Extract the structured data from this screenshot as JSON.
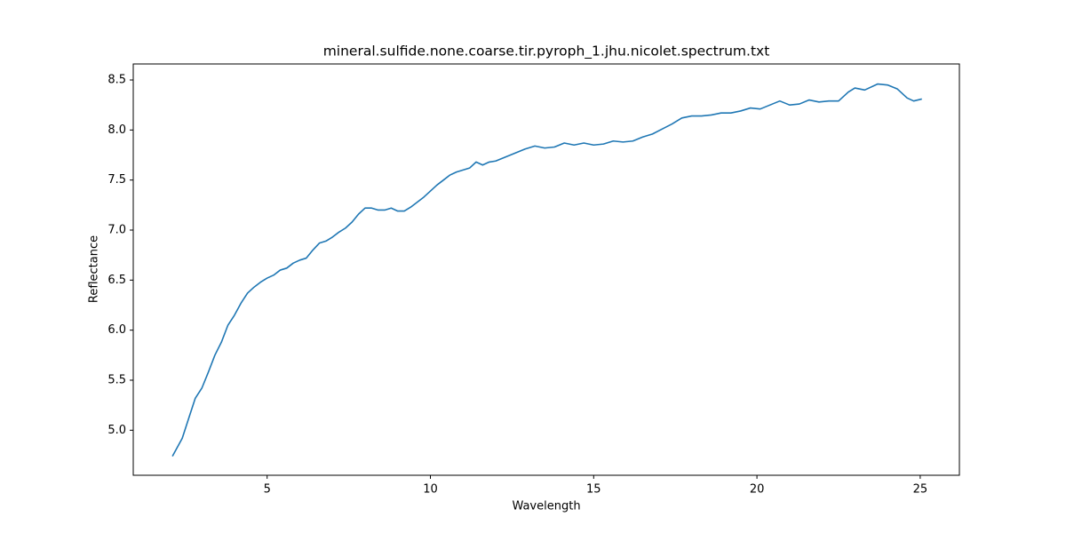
{
  "chart_data": {
    "type": "line",
    "title": "mineral.sulfide.none.coarse.tir.pyroph_1.jhu.nicolet.spectrum.txt",
    "xlabel": "Wavelength",
    "ylabel": "Reflectance",
    "xlim": [
      0.9,
      26.2
    ],
    "ylim": [
      4.55,
      8.66
    ],
    "xticks": [
      5,
      10,
      15,
      20,
      25
    ],
    "yticks": [
      {
        "value": 5,
        "label": "5.0"
      },
      {
        "value": 5.5,
        "label": "5.5"
      },
      {
        "value": 6,
        "label": "6.0"
      },
      {
        "value": 6.5,
        "label": "6.5"
      },
      {
        "value": 7,
        "label": "7.0"
      },
      {
        "value": 7.5,
        "label": "7.5"
      },
      {
        "value": 8,
        "label": "8.0"
      },
      {
        "value": 8.5,
        "label": "8.5"
      }
    ],
    "grid": false,
    "series": [
      {
        "name": "spectrum",
        "color": "#1f77b4",
        "x": [
          2.1,
          2.2,
          2.4,
          2.6,
          2.8,
          3.0,
          3.2,
          3.4,
          3.6,
          3.8,
          4.0,
          4.2,
          4.4,
          4.6,
          4.8,
          5.0,
          5.2,
          5.4,
          5.6,
          5.8,
          6.0,
          6.2,
          6.4,
          6.6,
          6.8,
          7.0,
          7.2,
          7.4,
          7.6,
          7.8,
          8.0,
          8.2,
          8.4,
          8.6,
          8.8,
          9.0,
          9.2,
          9.4,
          9.6,
          9.8,
          10.0,
          10.2,
          10.4,
          10.6,
          10.8,
          11.0,
          11.2,
          11.4,
          11.6,
          11.8,
          12.0,
          12.3,
          12.6,
          12.9,
          13.2,
          13.5,
          13.8,
          14.1,
          14.4,
          14.7,
          15.0,
          15.3,
          15.6,
          15.9,
          16.2,
          16.5,
          16.8,
          17.1,
          17.4,
          17.7,
          18.0,
          18.3,
          18.6,
          18.9,
          19.2,
          19.5,
          19.8,
          20.1,
          20.4,
          20.7,
          21.0,
          21.3,
          21.6,
          21.9,
          22.2,
          22.5,
          22.8,
          23.0,
          23.3,
          23.7,
          24.0,
          24.3,
          24.6,
          24.8,
          25.05
        ],
        "values": [
          4.74,
          4.8,
          4.92,
          5.12,
          5.32,
          5.42,
          5.58,
          5.75,
          5.88,
          6.05,
          6.15,
          6.27,
          6.37,
          6.43,
          6.48,
          6.52,
          6.55,
          6.6,
          6.62,
          6.67,
          6.7,
          6.72,
          6.8,
          6.87,
          6.89,
          6.93,
          6.98,
          7.02,
          7.08,
          7.16,
          7.22,
          7.22,
          7.2,
          7.2,
          7.22,
          7.19,
          7.19,
          7.23,
          7.28,
          7.33,
          7.39,
          7.45,
          7.5,
          7.55,
          7.58,
          7.6,
          7.62,
          7.68,
          7.65,
          7.68,
          7.69,
          7.73,
          7.77,
          7.81,
          7.84,
          7.82,
          7.83,
          7.87,
          7.85,
          7.87,
          7.85,
          7.86,
          7.89,
          7.88,
          7.89,
          7.93,
          7.96,
          8.01,
          8.06,
          8.12,
          8.14,
          8.14,
          8.15,
          8.17,
          8.17,
          8.19,
          8.22,
          8.21,
          8.25,
          8.29,
          8.25,
          8.26,
          8.3,
          8.28,
          8.29,
          8.29,
          8.38,
          8.42,
          8.4,
          8.46,
          8.45,
          8.41,
          8.32,
          8.29,
          8.31
        ]
      }
    ]
  }
}
